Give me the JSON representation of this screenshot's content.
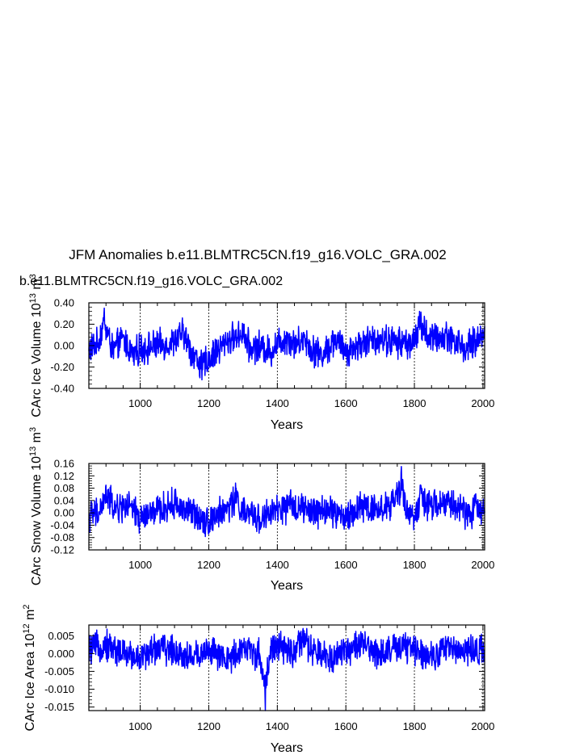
{
  "title": "JFM Anomalies b.e11.BLMTRC5CN.f19_g16.VOLC_GRA.002",
  "legend_label": "b.e11.BLMTRC5CN.f19_g16.VOLC_GRA.002",
  "colors": {
    "series": "#0000ff",
    "legend": "#0000ff",
    "axes": "#000000",
    "grid": "#000000"
  },
  "chart_data": [
    {
      "type": "line",
      "title": "JFM Anomalies b.e11.BLMTRC5CN.f19_g16.VOLC_GRA.002",
      "series_name": "b.e11.BLMTRC5CN.f19_g16.VOLC_GRA.002",
      "ylabel_text": "CArc Ice Volume 10",
      "ylabel_exp1": "13",
      "ylabel_mid": " m",
      "ylabel_exp2": "3",
      "xlabel": "Years",
      "xlim": [
        850,
        2005
      ],
      "ylim": [
        -0.4,
        0.4
      ],
      "x_ticks": [
        1000,
        1200,
        1400,
        1600,
        1800,
        2000
      ],
      "x_ticklabels": [
        "1000",
        "1200",
        "1400",
        "1600",
        "1800",
        "2000"
      ],
      "y_ticks": [
        0.4,
        0.2,
        0.0,
        -0.2,
        -0.4
      ],
      "y_ticklabels": [
        "0.40",
        "0.20",
        "0.00",
        "-0.20",
        "-0.40"
      ],
      "grid_x": [
        1000,
        1200,
        1400,
        1600,
        1800,
        2000
      ],
      "series": [
        {
          "name": "Ice Volume",
          "x": [
            850,
            875,
            895,
            920,
            950,
            980,
            1000,
            1050,
            1100,
            1125,
            1150,
            1180,
            1220,
            1250,
            1280,
            1300,
            1320,
            1350,
            1380,
            1400,
            1430,
            1450,
            1480,
            1500,
            1530,
            1570,
            1600,
            1650,
            1700,
            1750,
            1800,
            1815,
            1850,
            1900,
            1950,
            2000,
            2005
          ],
          "values": [
            -0.05,
            0.02,
            0.35,
            -0.08,
            0.1,
            -0.15,
            -0.05,
            0.0,
            0.05,
            0.2,
            -0.1,
            -0.32,
            -0.1,
            0.05,
            0.15,
            0.2,
            -0.05,
            0.0,
            -0.1,
            0.05,
            0.12,
            0.02,
            0.1,
            -0.05,
            -0.15,
            0.1,
            -0.1,
            0.05,
            0.1,
            0.05,
            0.05,
            0.32,
            0.1,
            0.15,
            -0.05,
            0.15,
            0.18
          ]
        }
      ]
    },
    {
      "type": "line",
      "ylabel_text": "CArc Snow Volume 10",
      "ylabel_exp1": "13",
      "ylabel_mid": " m",
      "ylabel_exp2": "3",
      "xlabel": "Years",
      "xlim": [
        850,
        2005
      ],
      "ylim": [
        -0.12,
        0.16
      ],
      "x_ticks": [
        1000,
        1200,
        1400,
        1600,
        1800,
        2000
      ],
      "x_ticklabels": [
        "1000",
        "1200",
        "1400",
        "1600",
        "1800",
        "2000"
      ],
      "y_ticks": [
        0.16,
        0.12,
        0.08,
        0.04,
        0.0,
        -0.04,
        -0.08,
        -0.12
      ],
      "y_ticklabels": [
        "0.16",
        "0.12",
        "0.08",
        "0.04",
        "0.00",
        "-0.04",
        "-0.08",
        "-0.12"
      ],
      "grid_x": [
        1000,
        1200,
        1400,
        1600,
        1800,
        2000
      ],
      "series": [
        {
          "name": "Snow Volume",
          "x": [
            850,
            880,
            900,
            930,
            960,
            1000,
            1050,
            1100,
            1150,
            1200,
            1250,
            1280,
            1300,
            1350,
            1400,
            1450,
            1500,
            1550,
            1600,
            1650,
            1700,
            1740,
            1762,
            1780,
            1800,
            1820,
            1850,
            1900,
            1950,
            2000,
            2005
          ],
          "values": [
            -0.02,
            0.0,
            0.09,
            0.02,
            0.04,
            -0.03,
            0.01,
            0.05,
            0.0,
            -0.04,
            0.02,
            0.08,
            0.0,
            -0.03,
            0.01,
            0.04,
            0.0,
            0.02,
            -0.03,
            0.04,
            0.02,
            0.05,
            0.15,
            0.0,
            -0.02,
            0.08,
            0.03,
            0.06,
            0.0,
            0.03,
            0.0
          ]
        }
      ]
    },
    {
      "type": "line",
      "ylabel_text": "CArc Ice Area 10",
      "ylabel_exp1": "12",
      "ylabel_mid": " m",
      "ylabel_exp2": "2",
      "xlabel": "Years",
      "xlim": [
        850,
        2005
      ],
      "ylim": [
        -0.016,
        0.008
      ],
      "x_ticks": [
        1000,
        1200,
        1400,
        1600,
        1800,
        2000
      ],
      "x_ticklabels": [
        "1000",
        "1200",
        "1400",
        "1600",
        "1800",
        "2000"
      ],
      "y_ticks": [
        0.005,
        0.0,
        -0.005,
        -0.01,
        -0.015
      ],
      "y_ticklabels": [
        "0.005",
        "0.000",
        "-0.005",
        "-0.010",
        "-0.015"
      ],
      "grid_x": [
        1000,
        1200,
        1400,
        1600,
        1800,
        2000
      ],
      "series": [
        {
          "name": "Ice Area",
          "x": [
            850,
            900,
            950,
            1000,
            1050,
            1100,
            1150,
            1200,
            1250,
            1300,
            1350,
            1365,
            1380,
            1400,
            1450,
            1475,
            1500,
            1550,
            1600,
            1650,
            1700,
            1750,
            1800,
            1850,
            1900,
            1950,
            2000,
            2005
          ],
          "values": [
            0.002,
            0.004,
            0.0,
            -0.002,
            0.003,
            0.001,
            -0.002,
            0.002,
            -0.004,
            0.003,
            -0.001,
            -0.016,
            0.002,
            0.003,
            0.0,
            0.007,
            0.001,
            -0.002,
            0.002,
            0.004,
            0.0,
            0.003,
            0.002,
            -0.001,
            0.003,
            0.001,
            0.002,
            0.001
          ]
        }
      ]
    }
  ]
}
